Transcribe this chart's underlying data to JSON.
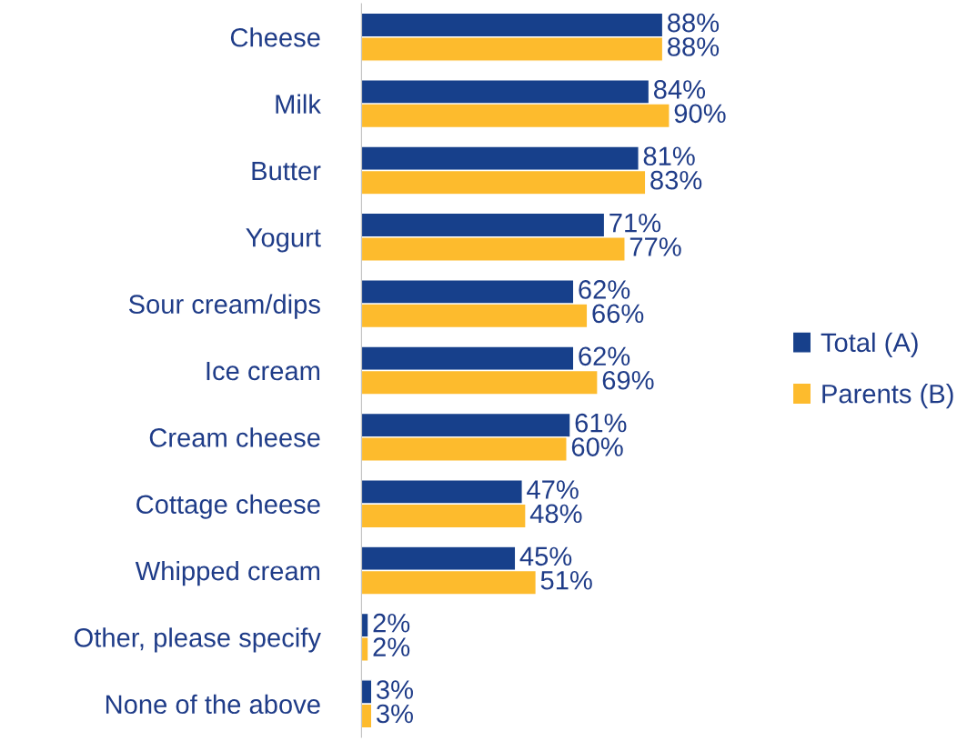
{
  "chart_data": {
    "type": "bar",
    "orientation": "horizontal",
    "categories": [
      "Cheese",
      "Milk",
      "Butter",
      "Yogurt",
      "Sour cream/dips",
      "Ice cream",
      "Cream cheese",
      "Cottage cheese",
      "Whipped cream",
      "Other, please specify",
      "None of the above"
    ],
    "series": [
      {
        "name": "Total (A)",
        "color": "#17408b",
        "values": [
          88,
          84,
          81,
          71,
          62,
          62,
          61,
          47,
          45,
          2,
          3
        ],
        "value_labels": [
          "88%",
          "84%",
          "81%",
          "71%",
          "62%",
          "62%",
          "61%",
          "47%",
          "45%",
          "2%",
          "3%"
        ]
      },
      {
        "name": "Parents (B)",
        "color": "#fdbb2d",
        "values": [
          88,
          90,
          83,
          77,
          66,
          69,
          60,
          48,
          51,
          2,
          3
        ],
        "value_labels": [
          "88%",
          "90%",
          "83%",
          "77%",
          "66%",
          "69%",
          "60%",
          "48%",
          "51%",
          "2%",
          "3%"
        ]
      }
    ],
    "legend": "right",
    "grid": false
  }
}
